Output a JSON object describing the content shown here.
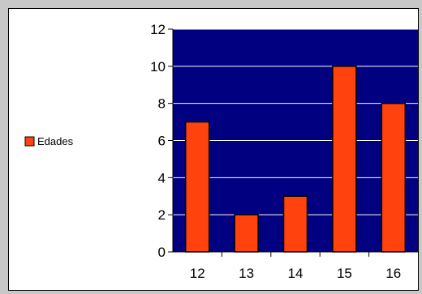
{
  "chart_data": {
    "type": "bar",
    "title": "",
    "xlabel": "",
    "ylabel": "",
    "categories": [
      "12",
      "13",
      "14",
      "15",
      "16"
    ],
    "series": [
      {
        "name": "Edades",
        "values": [
          7,
          2,
          3,
          10,
          8
        ]
      }
    ],
    "ylim": [
      0,
      12
    ],
    "yticks": [
      "0",
      "2",
      "4",
      "6",
      "8",
      "10",
      "12"
    ],
    "grid": true,
    "legend_position": "left",
    "colors": {
      "plot_background": "#000080",
      "bar_fill": "#ff420e",
      "bar_stroke": "#000000",
      "grid_line": "#ffffff",
      "panel_background": "#ffffff",
      "frame_background": "#c8c8c8"
    }
  }
}
